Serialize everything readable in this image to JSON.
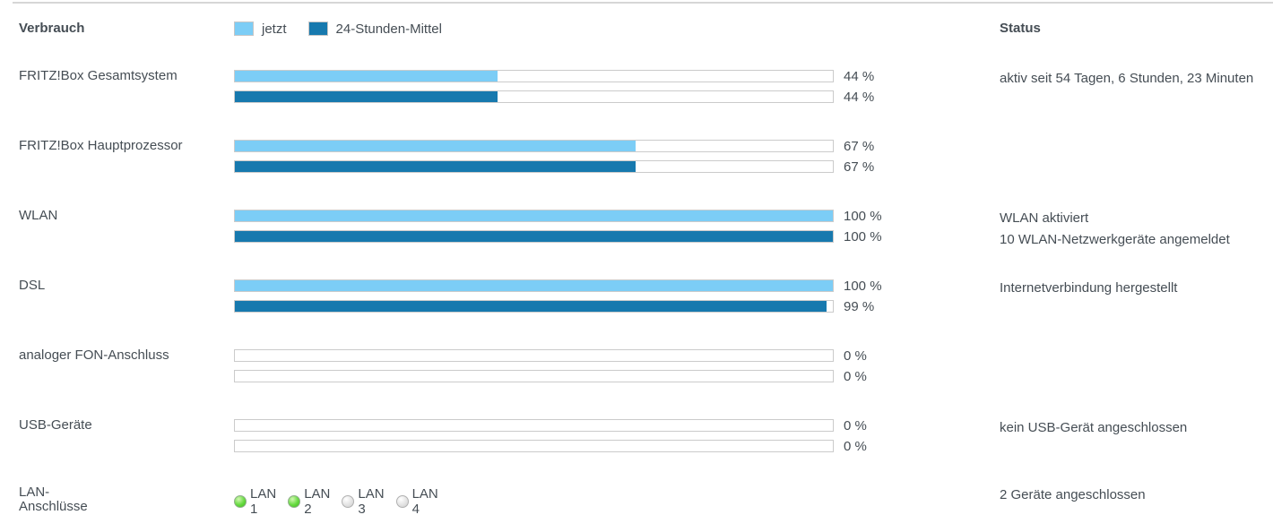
{
  "header": {
    "title": "Verbrauch",
    "status_title": "Status",
    "legend": [
      {
        "label": "jetzt"
      },
      {
        "label": "24-Stunden-Mittel"
      }
    ]
  },
  "colors": {
    "now": "#7CCDF6",
    "avg": "#1779AE",
    "track_border": "#CBCBCB",
    "led_on": "#5CD43C",
    "led_off": "#DCDCDC",
    "text": "#454D54"
  },
  "rows": [
    {
      "label": "FRITZ!Box Gesamtsystem",
      "now": 44,
      "avg": 44,
      "now_label": "44 %",
      "avg_label": "44 %",
      "status": [
        "aktiv seit 54 Tagen, 6 Stunden, 23 Minuten"
      ]
    },
    {
      "label": "FRITZ!Box Hauptprozessor",
      "now": 67,
      "avg": 67,
      "now_label": "67 %",
      "avg_label": "67 %",
      "status": []
    },
    {
      "label": "WLAN",
      "now": 100,
      "avg": 100,
      "now_label": "100 %",
      "avg_label": "100 %",
      "status": [
        "WLAN aktiviert",
        "10 WLAN-Netzwerkgeräte angemeldet"
      ]
    },
    {
      "label": "DSL",
      "now": 100,
      "avg": 99,
      "now_label": "100 %",
      "avg_label": "99 %",
      "status": [
        "Internetverbindung hergestellt"
      ]
    },
    {
      "label": "analoger FON-Anschluss",
      "now": 0,
      "avg": 0,
      "now_label": "0 %",
      "avg_label": "0 %",
      "status": []
    },
    {
      "label": "USB-Geräte",
      "now": 0,
      "avg": 0,
      "now_label": "0 %",
      "avg_label": "0 %",
      "status": [
        "kein USB-Gerät angeschlossen"
      ]
    }
  ],
  "lan_row": {
    "label": "LAN-Anschlüsse",
    "ports": [
      {
        "label": "LAN 1",
        "active": true
      },
      {
        "label": "LAN 2",
        "active": true
      },
      {
        "label": "LAN 3",
        "active": false
      },
      {
        "label": "LAN 4",
        "active": false
      }
    ],
    "status": "2 Geräte angeschlossen"
  }
}
